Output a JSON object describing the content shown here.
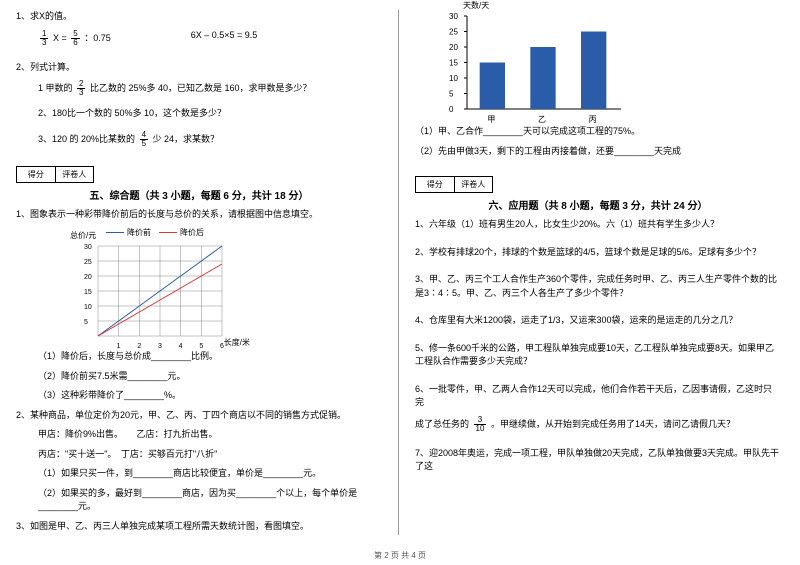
{
  "left": {
    "q1": {
      "title": "1、求X的值。",
      "eq1a": "X =",
      "eq1b": "：0.75",
      "frac_a_num": "1",
      "frac_a_den": "3",
      "frac_b_num": "5",
      "frac_b_den": "6",
      "eq2": "6X – 0.5×5 = 9.5"
    },
    "q2": {
      "title": "2、列式计算。",
      "s1a": "1 甲数的",
      "s1b": "比乙数的 25%多 40，已知乙数是 160，求甲数是多少？",
      "s1_num": "2",
      "s1_den": "3",
      "s2": "2、180比一个数的 50%多 10，这个数是多少？",
      "s3a": "3、120 的 20%比某数的",
      "s3b": "少 24，求某数？",
      "s3_num": "4",
      "s3_den": "5"
    },
    "score": {
      "a": "得分",
      "b": "评卷人"
    },
    "section5": "五、综合题（共 3 小题，每题 6 分，共计 18 分）",
    "c1": {
      "title": "1、图象表示一种彩带降价前后的长度与总价的关系，请根据图中信息填空。",
      "legend1": "降价前",
      "legend2": "降价后",
      "y_label": "总价/元",
      "x_label": "长度/米",
      "s1": "（1）降价后，长度与总价成________比例。",
      "s2": "（2）降价前买7.5米需________元。",
      "s3": "（3）这种彩带降价了________%。"
    },
    "c2": {
      "title": "2、某种商品，单位定价为20元，甲、乙、丙、丁四个商店以不同的销售方式促销。",
      "l1": "甲店：降价9%出售。　　乙店：打九折出售。",
      "l2": "丙店：\"买十送一\"。　丁店：买够百元打\"八折\"",
      "s1": "（1）如果只买一件，到________商店比较便宜，单价是________元。",
      "s2": "（2）如果买的多，最好到________商店，因为买________个以上，每个单价是________元。"
    },
    "c3": {
      "title": "3、如图是甲、乙、丙三人单独完成某项工程所需天数统计图，看图填空。"
    },
    "line_chart": {
      "type": "line",
      "x_ticks": [
        1,
        2,
        3,
        4,
        5,
        6
      ],
      "y_ticks": [
        5,
        10,
        15,
        20,
        25,
        30
      ],
      "series1": {
        "color": "#2a5caa",
        "points": [
          [
            0,
            0
          ],
          [
            1,
            5
          ],
          [
            2,
            10
          ],
          [
            3,
            15
          ],
          [
            4,
            20
          ],
          [
            5,
            25
          ],
          [
            6,
            30
          ]
        ]
      },
      "series2": {
        "color": "#d33333",
        "points": [
          [
            0,
            0
          ],
          [
            1,
            4
          ],
          [
            2,
            8
          ],
          [
            3,
            12
          ],
          [
            4,
            16
          ],
          [
            5,
            20
          ],
          [
            6,
            24
          ]
        ]
      },
      "grid_color": "#888",
      "bg": "#ffffff"
    }
  },
  "right": {
    "bar_chart": {
      "type": "bar",
      "y_label": "天数/天",
      "y_ticks": [
        0,
        5,
        10,
        15,
        20,
        25,
        30
      ],
      "categories": [
        "甲",
        "乙",
        "丙"
      ],
      "values": [
        15,
        20,
        25
      ],
      "bar_color": "#2a5caa",
      "grid_color": "#888",
      "bg": "#ffffff",
      "bar_width": 0.5
    },
    "b1": "（1）甲、乙合作________天可以完成这项工程的75%。",
    "b2": "（2）先由甲做3天，剩下的工程由丙接着做，还要________天完成",
    "score": {
      "a": "得分",
      "b": "评卷人"
    },
    "section6": "六、应用题（共 8 小题，每题 3 分，共计 24 分）",
    "a1": "1、六年级（1）班有男生20人，比女生少20%。六（1）班共有学生多少人？",
    "a2": "2、学校有排球20个，排球的个数是篮球的4/5，篮球个数是足球的5/6。足球有多少个？",
    "a3": "3、甲、乙、丙三个工人合作生产360个零件，完成任务时甲、乙、丙三人生产零件个数的比是3∶4∶5。甲、乙、丙三个人各生产了多少个零件？",
    "a4": "4、仓库里有大米1200袋，运走了1/3，又运来300袋，运来的是运走的几分之几？",
    "a5": "5、修一条600千米的公路，甲工程队单独完成要10天，乙工程队单独完成要8天。如果甲乙工程队合作需要多少天完成？",
    "a6a": "6、一批零件，甲、乙两人合作12天可以完成，他们合作若干天后，乙因事请假，乙这时只完",
    "a6b": "成了总任务的",
    "a6c": "。甲继续做，从开始到完成任务用了14天，请问乙请假几天？",
    "a6_num": "3",
    "a6_den": "10",
    "a7": "7、迎2008年奥运，完成一项工程，甲队单独做20天完成，乙队单独做要3天完成。甲队先干了这"
  },
  "footer": "第 2 页 共 4 页"
}
